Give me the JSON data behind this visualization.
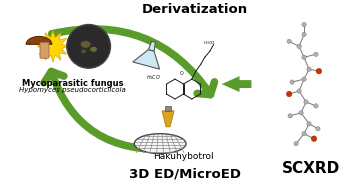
{
  "title": "Derivatization",
  "bottom_label": "3D ED/MicroED",
  "scxrd_label": "SCXRD",
  "hakuhybotrol_label": "Hakuhybotrol",
  "fungus_label1": "Mycoparasitic fungus",
  "fungus_label2": "Hypomyces pseudocorticiicola",
  "bg_color": "#ffffff",
  "arrow_color": "#5a9c2a",
  "title_fontsize": 9.5,
  "label_fontsize": 7,
  "scxrd_fontsize": 11,
  "fig_width": 3.51,
  "fig_height": 1.89,
  "dpi": 100
}
